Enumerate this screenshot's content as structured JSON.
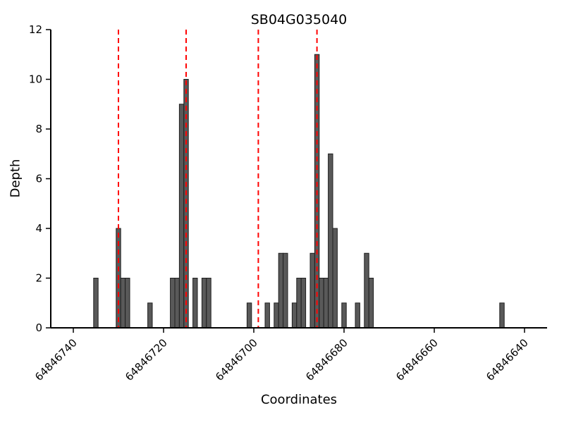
{
  "chart_data": {
    "type": "bar",
    "title": "SB04G035040",
    "xlabel": "Coordinates",
    "ylabel": "Depth",
    "x_reversed": true,
    "xlim": [
      64846745,
      64846635
    ],
    "ylim": [
      0,
      12
    ],
    "xticks": [
      64846740,
      64846720,
      64846700,
      64846680,
      64846660,
      64846640
    ],
    "yticks": [
      0,
      2,
      4,
      6,
      8,
      10,
      12
    ],
    "grid": false,
    "bar_color": "#595959",
    "bar_edge_color": "#1f1f1f",
    "vline_color": "#ff0000",
    "vline_style": "dashed",
    "vlines": [
      64846730,
      64846715,
      64846699,
      64846686
    ],
    "bars": [
      {
        "x": 64846735,
        "depth": 2
      },
      {
        "x": 64846730,
        "depth": 4
      },
      {
        "x": 64846729,
        "depth": 2
      },
      {
        "x": 64846728,
        "depth": 2
      },
      {
        "x": 64846723,
        "depth": 1
      },
      {
        "x": 64846718,
        "depth": 2
      },
      {
        "x": 64846717,
        "depth": 2
      },
      {
        "x": 64846716,
        "depth": 9
      },
      {
        "x": 64846715,
        "depth": 10
      },
      {
        "x": 64846713,
        "depth": 2
      },
      {
        "x": 64846711,
        "depth": 2
      },
      {
        "x": 64846710,
        "depth": 2
      },
      {
        "x": 64846701,
        "depth": 1
      },
      {
        "x": 64846697,
        "depth": 1
      },
      {
        "x": 64846695,
        "depth": 1
      },
      {
        "x": 64846694,
        "depth": 3
      },
      {
        "x": 64846693,
        "depth": 3
      },
      {
        "x": 64846691,
        "depth": 1
      },
      {
        "x": 64846690,
        "depth": 2
      },
      {
        "x": 64846689,
        "depth": 2
      },
      {
        "x": 64846687,
        "depth": 3
      },
      {
        "x": 64846686,
        "depth": 11
      },
      {
        "x": 64846685,
        "depth": 2
      },
      {
        "x": 64846684,
        "depth": 2
      },
      {
        "x": 64846683,
        "depth": 7
      },
      {
        "x": 64846682,
        "depth": 4
      },
      {
        "x": 64846680,
        "depth": 1
      },
      {
        "x": 64846677,
        "depth": 1
      },
      {
        "x": 64846675,
        "depth": 3
      },
      {
        "x": 64846674,
        "depth": 2
      },
      {
        "x": 64846645,
        "depth": 1
      }
    ]
  }
}
